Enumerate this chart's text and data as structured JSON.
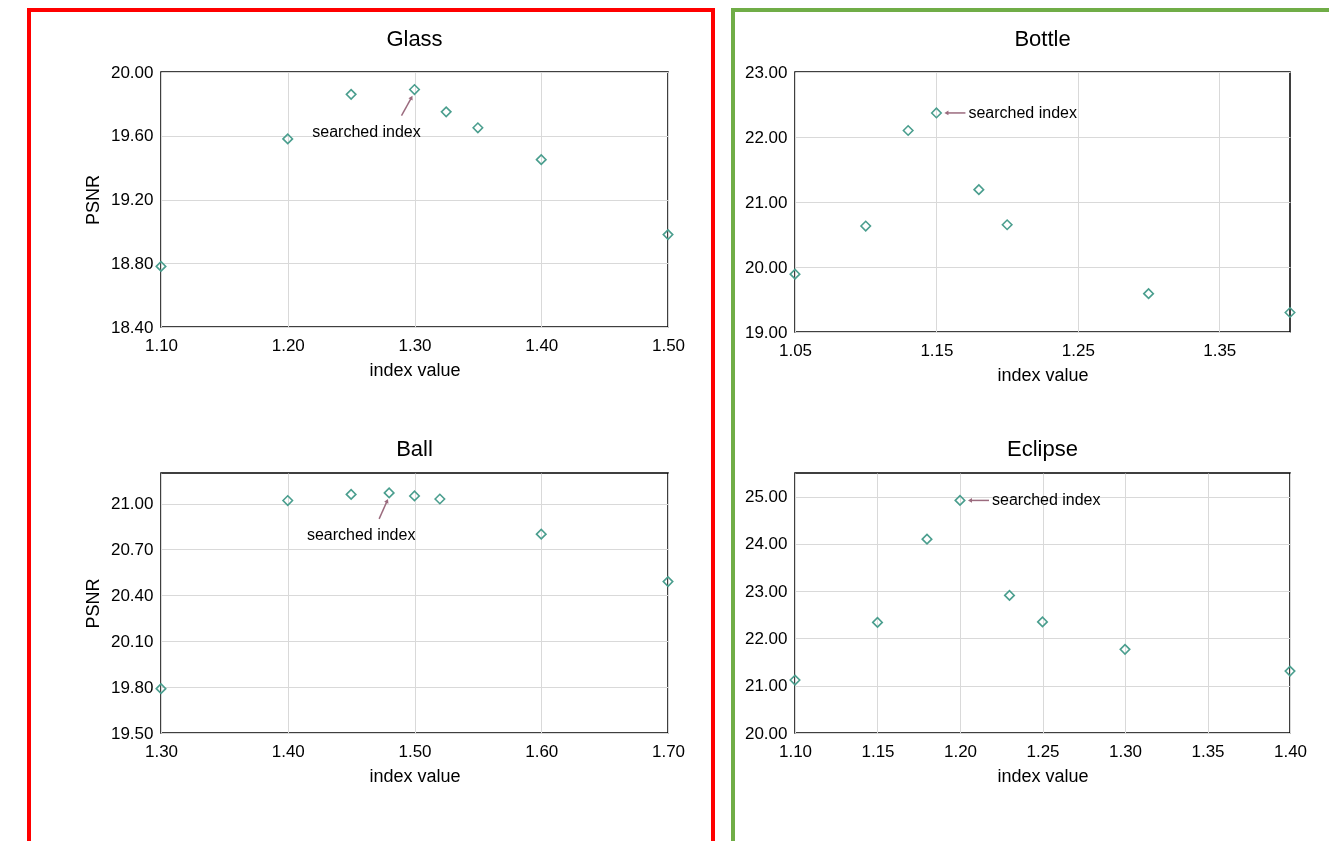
{
  "chart_data": [
    {
      "type": "scatter",
      "title": "Glass",
      "xlabel": "index value",
      "ylabel": "PSNR",
      "marker": "diamond",
      "grid": true,
      "x": [
        1.1,
        1.2,
        1.25,
        1.3,
        1.325,
        1.35,
        1.4,
        1.5
      ],
      "series": [
        {
          "color": "#4a9e8e",
          "values": [
            18.78,
            19.58,
            19.86,
            19.89,
            19.75,
            19.65,
            19.45,
            18.98
          ]
        }
      ],
      "xlim": [
        1.1,
        1.5
      ],
      "xticks": [
        {
          "value": 1.1,
          "label": "1.10"
        },
        {
          "value": 1.2,
          "label": "1.20"
        },
        {
          "value": 1.3,
          "label": "1.30"
        },
        {
          "value": 1.4,
          "label": "1.40"
        },
        {
          "value": 1.5,
          "label": "1.50"
        }
      ],
      "ylim": [
        18.4,
        20.0
      ],
      "yticks": [
        {
          "value": 18.4,
          "label": "18.40"
        },
        {
          "value": 18.8,
          "label": "18.80"
        },
        {
          "value": 19.2,
          "label": "19.20"
        },
        {
          "value": 19.6,
          "label": "19.60"
        },
        {
          "value": 20.0,
          "label": "20.00"
        }
      ],
      "annotations": [
        {
          "text": "searched index",
          "x": 1.3,
          "y": 19.89
        }
      ]
    },
    {
      "type": "scatter",
      "title": "Bottle",
      "xlabel": "index value",
      "marker": "diamond",
      "grid": true,
      "x": [
        1.05,
        1.1,
        1.13,
        1.15,
        1.18,
        1.2,
        1.3,
        1.4
      ],
      "series": [
        {
          "color": "#4a9e8e",
          "values": [
            19.89,
            20.63,
            22.1,
            22.37,
            21.19,
            20.65,
            19.59,
            19.3
          ]
        }
      ],
      "xlim": [
        1.05,
        1.4
      ],
      "xticks": [
        {
          "value": 1.05,
          "label": "1.05"
        },
        {
          "value": 1.15,
          "label": "1.15"
        },
        {
          "value": 1.25,
          "label": "1.25"
        },
        {
          "value": 1.35,
          "label": "1.35"
        }
      ],
      "ylim": [
        19.0,
        23.0
      ],
      "yticks": [
        {
          "value": 19,
          "label": "19.00"
        },
        {
          "value": 20,
          "label": "20.00"
        },
        {
          "value": 21,
          "label": "21.00"
        },
        {
          "value": 22,
          "label": "22.00"
        },
        {
          "value": 23,
          "label": "23.00"
        }
      ],
      "annotations": [
        {
          "text": "searched index",
          "x": 1.15,
          "y": 22.37
        }
      ]
    },
    {
      "type": "scatter",
      "title": "Ball",
      "xlabel": "index value",
      "ylabel": "PSNR",
      "marker": "diamond",
      "grid": true,
      "x": [
        1.3,
        1.4,
        1.45,
        1.48,
        1.5,
        1.52,
        1.6,
        1.7
      ],
      "series": [
        {
          "color": "#4a9e8e",
          "values": [
            19.79,
            21.02,
            21.06,
            21.07,
            21.05,
            21.03,
            20.8,
            20.49
          ]
        }
      ],
      "xlim": [
        1.3,
        1.7
      ],
      "xticks": [
        {
          "value": 1.3,
          "label": "1.30"
        },
        {
          "value": 1.4,
          "label": "1.40"
        },
        {
          "value": 1.5,
          "label": "1.50"
        },
        {
          "value": 1.6,
          "label": "1.60"
        },
        {
          "value": 1.7,
          "label": "1.70"
        }
      ],
      "ylim": [
        19.5,
        21.2
      ],
      "yticks": [
        {
          "value": 19.5,
          "label": "19.50"
        },
        {
          "value": 19.8,
          "label": "19.80"
        },
        {
          "value": 20.1,
          "label": "20.10"
        },
        {
          "value": 20.4,
          "label": "20.40"
        },
        {
          "value": 20.7,
          "label": "20.70"
        },
        {
          "value": 21.0,
          "label": "21.00"
        }
      ],
      "annotations": [
        {
          "text": "searched index",
          "x": 1.48,
          "y": 21.07
        }
      ]
    },
    {
      "type": "scatter",
      "title": "Eclipse",
      "xlabel": "index value",
      "marker": "diamond",
      "grid": true,
      "x": [
        1.1,
        1.15,
        1.18,
        1.2,
        1.23,
        1.25,
        1.3,
        1.4
      ],
      "series": [
        {
          "color": "#4a9e8e",
          "values": [
            21.12,
            22.34,
            24.1,
            24.92,
            22.91,
            22.35,
            21.77,
            21.31
          ]
        }
      ],
      "xlim": [
        1.1,
        1.4
      ],
      "xticks": [
        {
          "value": 1.1,
          "label": "1.10"
        },
        {
          "value": 1.15,
          "label": "1.15"
        },
        {
          "value": 1.2,
          "label": "1.20"
        },
        {
          "value": 1.25,
          "label": "1.25"
        },
        {
          "value": 1.3,
          "label": "1.30"
        },
        {
          "value": 1.35,
          "label": "1.35"
        },
        {
          "value": 1.4,
          "label": "1.40"
        }
      ],
      "ylim": [
        20.0,
        25.5
      ],
      "yticks": [
        {
          "value": 20,
          "label": "20.00"
        },
        {
          "value": 21,
          "label": "21.00"
        },
        {
          "value": 22,
          "label": "22.00"
        },
        {
          "value": 23,
          "label": "23.00"
        },
        {
          "value": 24,
          "label": "24.00"
        },
        {
          "value": 25,
          "label": "25.00"
        }
      ],
      "annotations": [
        {
          "text": "searched index",
          "x": 1.2,
          "y": 24.92
        }
      ]
    }
  ]
}
